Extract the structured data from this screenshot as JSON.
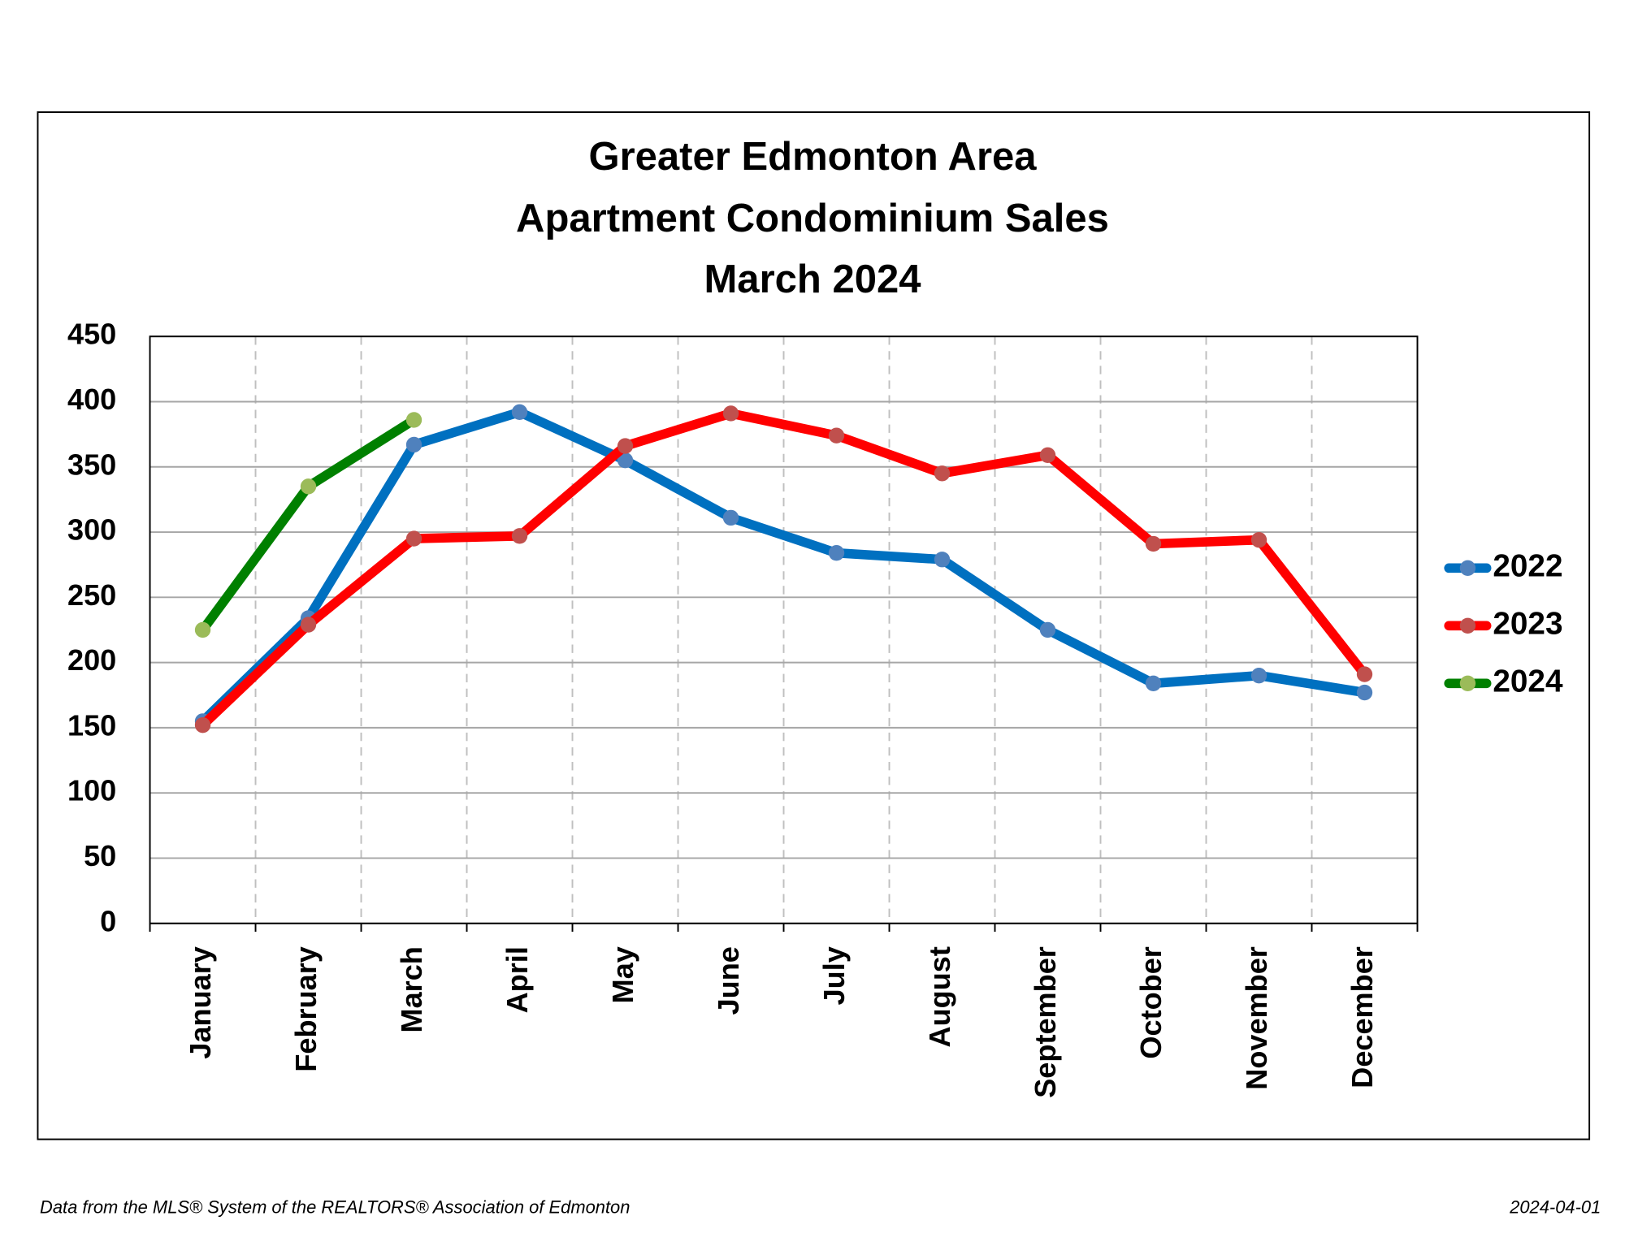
{
  "chart_data": {
    "type": "line",
    "title": [
      "Greater Edmonton Area",
      "Apartment Condominium Sales",
      "March 2024"
    ],
    "categories": [
      "January",
      "February",
      "March",
      "April",
      "May",
      "June",
      "July",
      "August",
      "September",
      "October",
      "November",
      "December"
    ],
    "series": [
      {
        "name": "2022",
        "color": "#0070c0",
        "marker_color": "#4f81bd",
        "values": [
          155,
          234,
          367,
          392,
          355,
          311,
          284,
          279,
          225,
          184,
          190,
          177
        ]
      },
      {
        "name": "2023",
        "color": "#ff0000",
        "marker_color": "#c0504d",
        "values": [
          152,
          229,
          295,
          297,
          366,
          391,
          374,
          345,
          359,
          291,
          294,
          191
        ]
      },
      {
        "name": "2024",
        "color": "#008000",
        "marker_color": "#9bbb59",
        "values": [
          225,
          335,
          386,
          null,
          null,
          null,
          null,
          null,
          null,
          null,
          null,
          null
        ]
      }
    ],
    "ylim": [
      0,
      450
    ],
    "yticks": [
      0,
      50,
      100,
      150,
      200,
      250,
      300,
      350,
      400,
      450
    ],
    "grid": true,
    "legend": "right",
    "footer_left": "Data from the MLS® System of the REALTORS® Association of Edmonton",
    "footer_right": "2024-04-01"
  }
}
